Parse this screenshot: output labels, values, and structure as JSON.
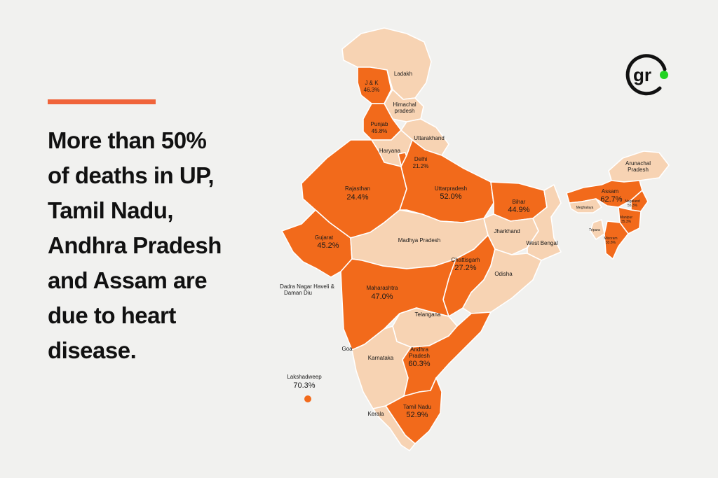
{
  "headline": {
    "lines": [
      "More than 50%",
      "of deaths in UP,",
      "Tamil Nadu,",
      "Andhra Pradesh",
      "and Assam are",
      "due to heart",
      "disease."
    ]
  },
  "colors": {
    "accent": "#f0643a",
    "high": "#f26a1b",
    "low": "#f7d3b3",
    "background": "#f1f1ef"
  },
  "logo": {
    "text": "gr",
    "icon": "gr-logo-icon"
  },
  "map": {
    "states": {
      "jk": {
        "name": "J & K",
        "value": "46.3%"
      },
      "ladakh": {
        "name": "Ladakh"
      },
      "himachal": {
        "name": "Himachal",
        "name2": "pradesh"
      },
      "punjab": {
        "name": "Punjab",
        "value": "45.8%"
      },
      "uttarakhand": {
        "name": "Uttarakhand"
      },
      "haryana": {
        "name": "Haryana"
      },
      "delhi": {
        "name": "Delhi",
        "value": "21.2%"
      },
      "rajasthan": {
        "name": "Rajasthan",
        "value": "24.4%"
      },
      "up": {
        "name": "Uttarpradesh",
        "value": "52.0%"
      },
      "bihar": {
        "name": "Bihar",
        "value": "44.9%"
      },
      "arunachal": {
        "name": "Arunachal",
        "name2": "Pradesh"
      },
      "assam": {
        "name": "Assam",
        "value": "62.7%"
      },
      "meghalaya": {
        "name": "Meghalaya"
      },
      "nagaland": {
        "name": "Nagaland",
        "value": "55.3%"
      },
      "manipur": {
        "name": "Manipur",
        "value": "35.3%"
      },
      "tripura": {
        "name": "Tripura"
      },
      "mizoram": {
        "name": "Mizoram",
        "value": "33.8%"
      },
      "gujarat": {
        "name": "Gujarat",
        "value": "45.2%"
      },
      "mp": {
        "name": "Madhya Pradesh"
      },
      "jharkhand": {
        "name": "Jharkhand"
      },
      "westbengal": {
        "name": "West Bengal"
      },
      "chhattisgarh": {
        "name": "Chattisgarh",
        "value": "27.2%"
      },
      "odisha": {
        "name": "Odisha"
      },
      "dnhdd": {
        "name": "Dadra Nagar Haveli &",
        "name2": "Daman Diu"
      },
      "maharashtra": {
        "name": "Maharashtra",
        "value": "47.0%"
      },
      "telangana": {
        "name": "Telangana"
      },
      "goa": {
        "name": "Goa"
      },
      "karnataka": {
        "name": "Karnataka"
      },
      "ap": {
        "name": "Andhra",
        "name2": "Pradesh",
        "value": "60.3%"
      },
      "lakshadweep": {
        "name": "Lakshadweep",
        "value": "70.3%"
      },
      "tn": {
        "name": "Tamil Nadu",
        "value": "52.9%"
      },
      "kerala": {
        "name": "Kerala"
      }
    }
  }
}
